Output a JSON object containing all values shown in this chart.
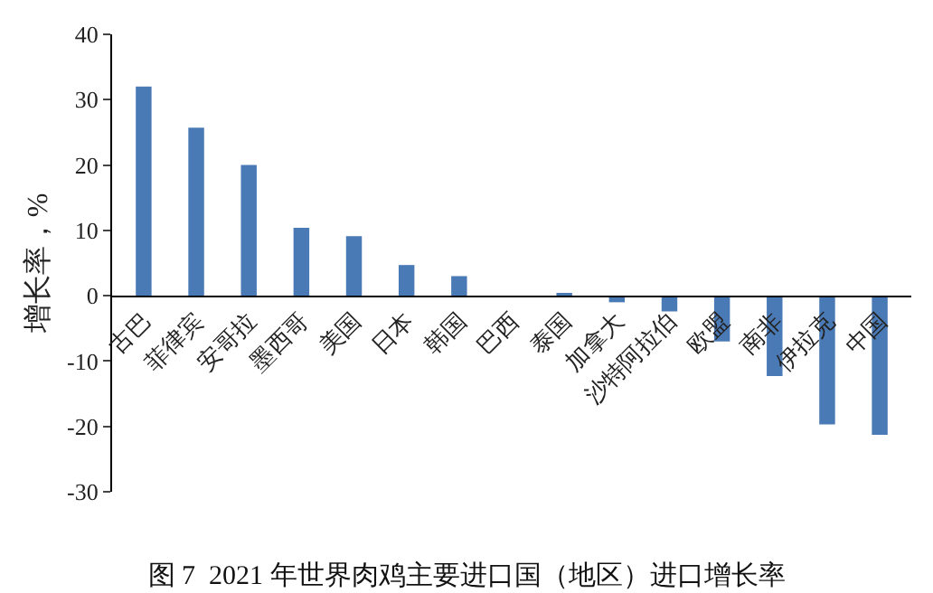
{
  "chart_data": {
    "type": "bar",
    "title": "图 7  2021 年世界肉鸡主要进口国（地区）进口增长率",
    "ylabel": "增长率，%",
    "categories": [
      "古巴",
      "菲律宾",
      "安哥拉",
      "墨西哥",
      "美国",
      "日本",
      "韩国",
      "巴西",
      "泰国",
      "加拿大",
      "沙特阿拉伯",
      "欧盟",
      "南非",
      "伊拉克",
      "中国"
    ],
    "values": [
      32.0,
      25.7,
      20.0,
      10.4,
      9.1,
      4.7,
      3.0,
      0,
      0.3,
      -1.0,
      -2.4,
      -7.0,
      -12.3,
      -19.7,
      -21.3
    ],
    "color": "#4a7ab5",
    "ylim": [
      -30,
      40
    ],
    "yticks": [
      -30,
      -20,
      -10,
      0,
      10,
      20,
      30,
      40
    ]
  }
}
